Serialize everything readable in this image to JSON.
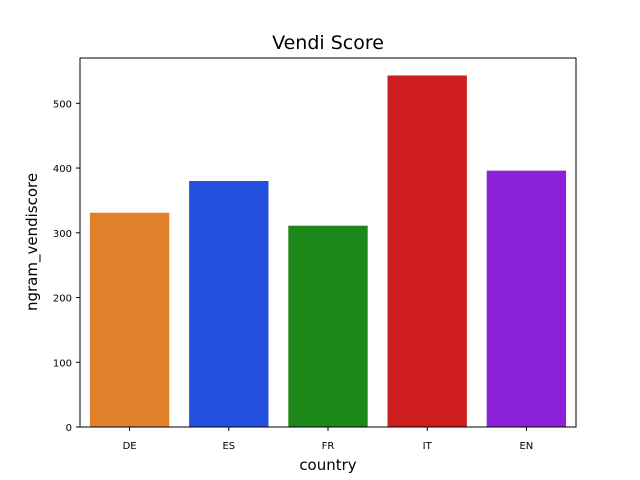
{
  "chart_data": {
    "type": "bar",
    "title": "Vendi Score",
    "xlabel": "country",
    "ylabel": "ngram_vendiscore",
    "categories": [
      "DE",
      "ES",
      "FR",
      "IT",
      "EN"
    ],
    "values": [
      331,
      380,
      311,
      543,
      396
    ],
    "colors": [
      "#e1812c",
      "#2450e0",
      "#1e8719",
      "#cd1d1f",
      "#8b22d9"
    ],
    "ylim": [
      0,
      570
    ],
    "yticks": [
      0,
      100,
      200,
      300,
      400,
      500
    ],
    "grid": false,
    "legend": "none"
  }
}
